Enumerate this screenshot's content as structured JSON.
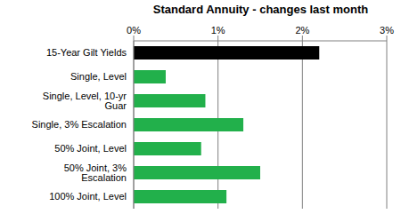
{
  "chart_data": {
    "type": "bar",
    "title": "Standard Annuity - changes last month",
    "orientation": "horizontal",
    "categories": [
      "15-Year Gilt Yields",
      "Single, Level",
      "Single, Level, 10-yr Guar",
      "Single, 3% Escalation",
      "50% Joint, Level",
      "50% Joint, 3% Escalation",
      "100% Joint, Level"
    ],
    "values": [
      2.2,
      0.38,
      0.85,
      1.3,
      0.8,
      1.5,
      1.1
    ],
    "colors": [
      "#000000",
      "#22b04b",
      "#22b04b",
      "#22b04b",
      "#22b04b",
      "#22b04b",
      "#22b04b"
    ],
    "xlim": [
      0,
      3
    ],
    "xticks": [
      {
        "value": 0,
        "label": "0%"
      },
      {
        "value": 1,
        "label": "1%"
      },
      {
        "value": 2,
        "label": "2%"
      },
      {
        "value": 3,
        "label": "3%"
      }
    ],
    "grid": true
  }
}
